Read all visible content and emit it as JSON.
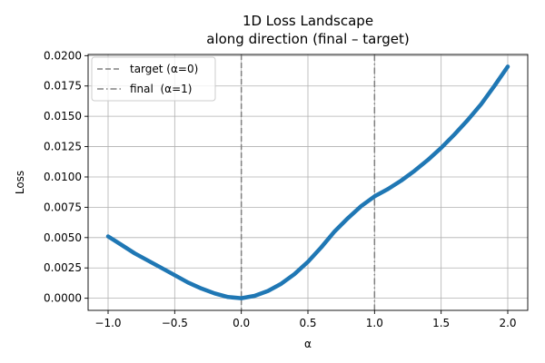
{
  "chart_data": {
    "type": "line",
    "title": "1D Loss Landscape",
    "subtitle": "along direction (final – target)",
    "xlabel": "α",
    "ylabel": "Loss",
    "xlim": [
      -1.15,
      2.15
    ],
    "ylim": [
      -0.001,
      0.0201
    ],
    "xticks": [
      -1.0,
      -0.5,
      0.0,
      0.5,
      1.0,
      1.5,
      2.0
    ],
    "xtick_labels": [
      "−1.0",
      "−0.5",
      "0.0",
      "0.5",
      "1.0",
      "1.5",
      "2.0"
    ],
    "yticks": [
      0.0,
      0.0025,
      0.005,
      0.0075,
      0.01,
      0.0125,
      0.015,
      0.0175,
      0.02
    ],
    "ytick_labels": [
      "0.0000",
      "0.0025",
      "0.0050",
      "0.0075",
      "0.0100",
      "0.0125",
      "0.0150",
      "0.0175",
      "0.0200"
    ],
    "grid": true,
    "legend_position": "top-left",
    "series": [
      {
        "color": "#1f77b4",
        "x": [
          -1.0,
          -0.9,
          -0.8,
          -0.7,
          -0.6,
          -0.5,
          -0.4,
          -0.3,
          -0.2,
          -0.1,
          0.0,
          0.1,
          0.2,
          0.3,
          0.4,
          0.5,
          0.6,
          0.7,
          0.8,
          0.9,
          1.0,
          1.1,
          1.2,
          1.3,
          1.4,
          1.5,
          1.6,
          1.7,
          1.8,
          1.9,
          2.0
        ],
        "y": [
          0.0051,
          0.0044,
          0.0037,
          0.0031,
          0.0025,
          0.0019,
          0.0013,
          0.0008,
          0.0004,
          0.0001,
          0.0,
          0.0002,
          0.0006,
          0.0012,
          0.002,
          0.003,
          0.0042,
          0.0055,
          0.0066,
          0.0076,
          0.0084,
          0.009,
          0.0097,
          0.0105,
          0.0114,
          0.0124,
          0.0135,
          0.0147,
          0.016,
          0.0175,
          0.0191
        ]
      }
    ],
    "vlines": [
      {
        "x": 0.0,
        "label": "target (α=0)",
        "style": "dashed",
        "color": "#808080"
      },
      {
        "x": 1.0,
        "label": "final  (α=1)",
        "style": "dashdot",
        "color": "#808080"
      }
    ]
  }
}
